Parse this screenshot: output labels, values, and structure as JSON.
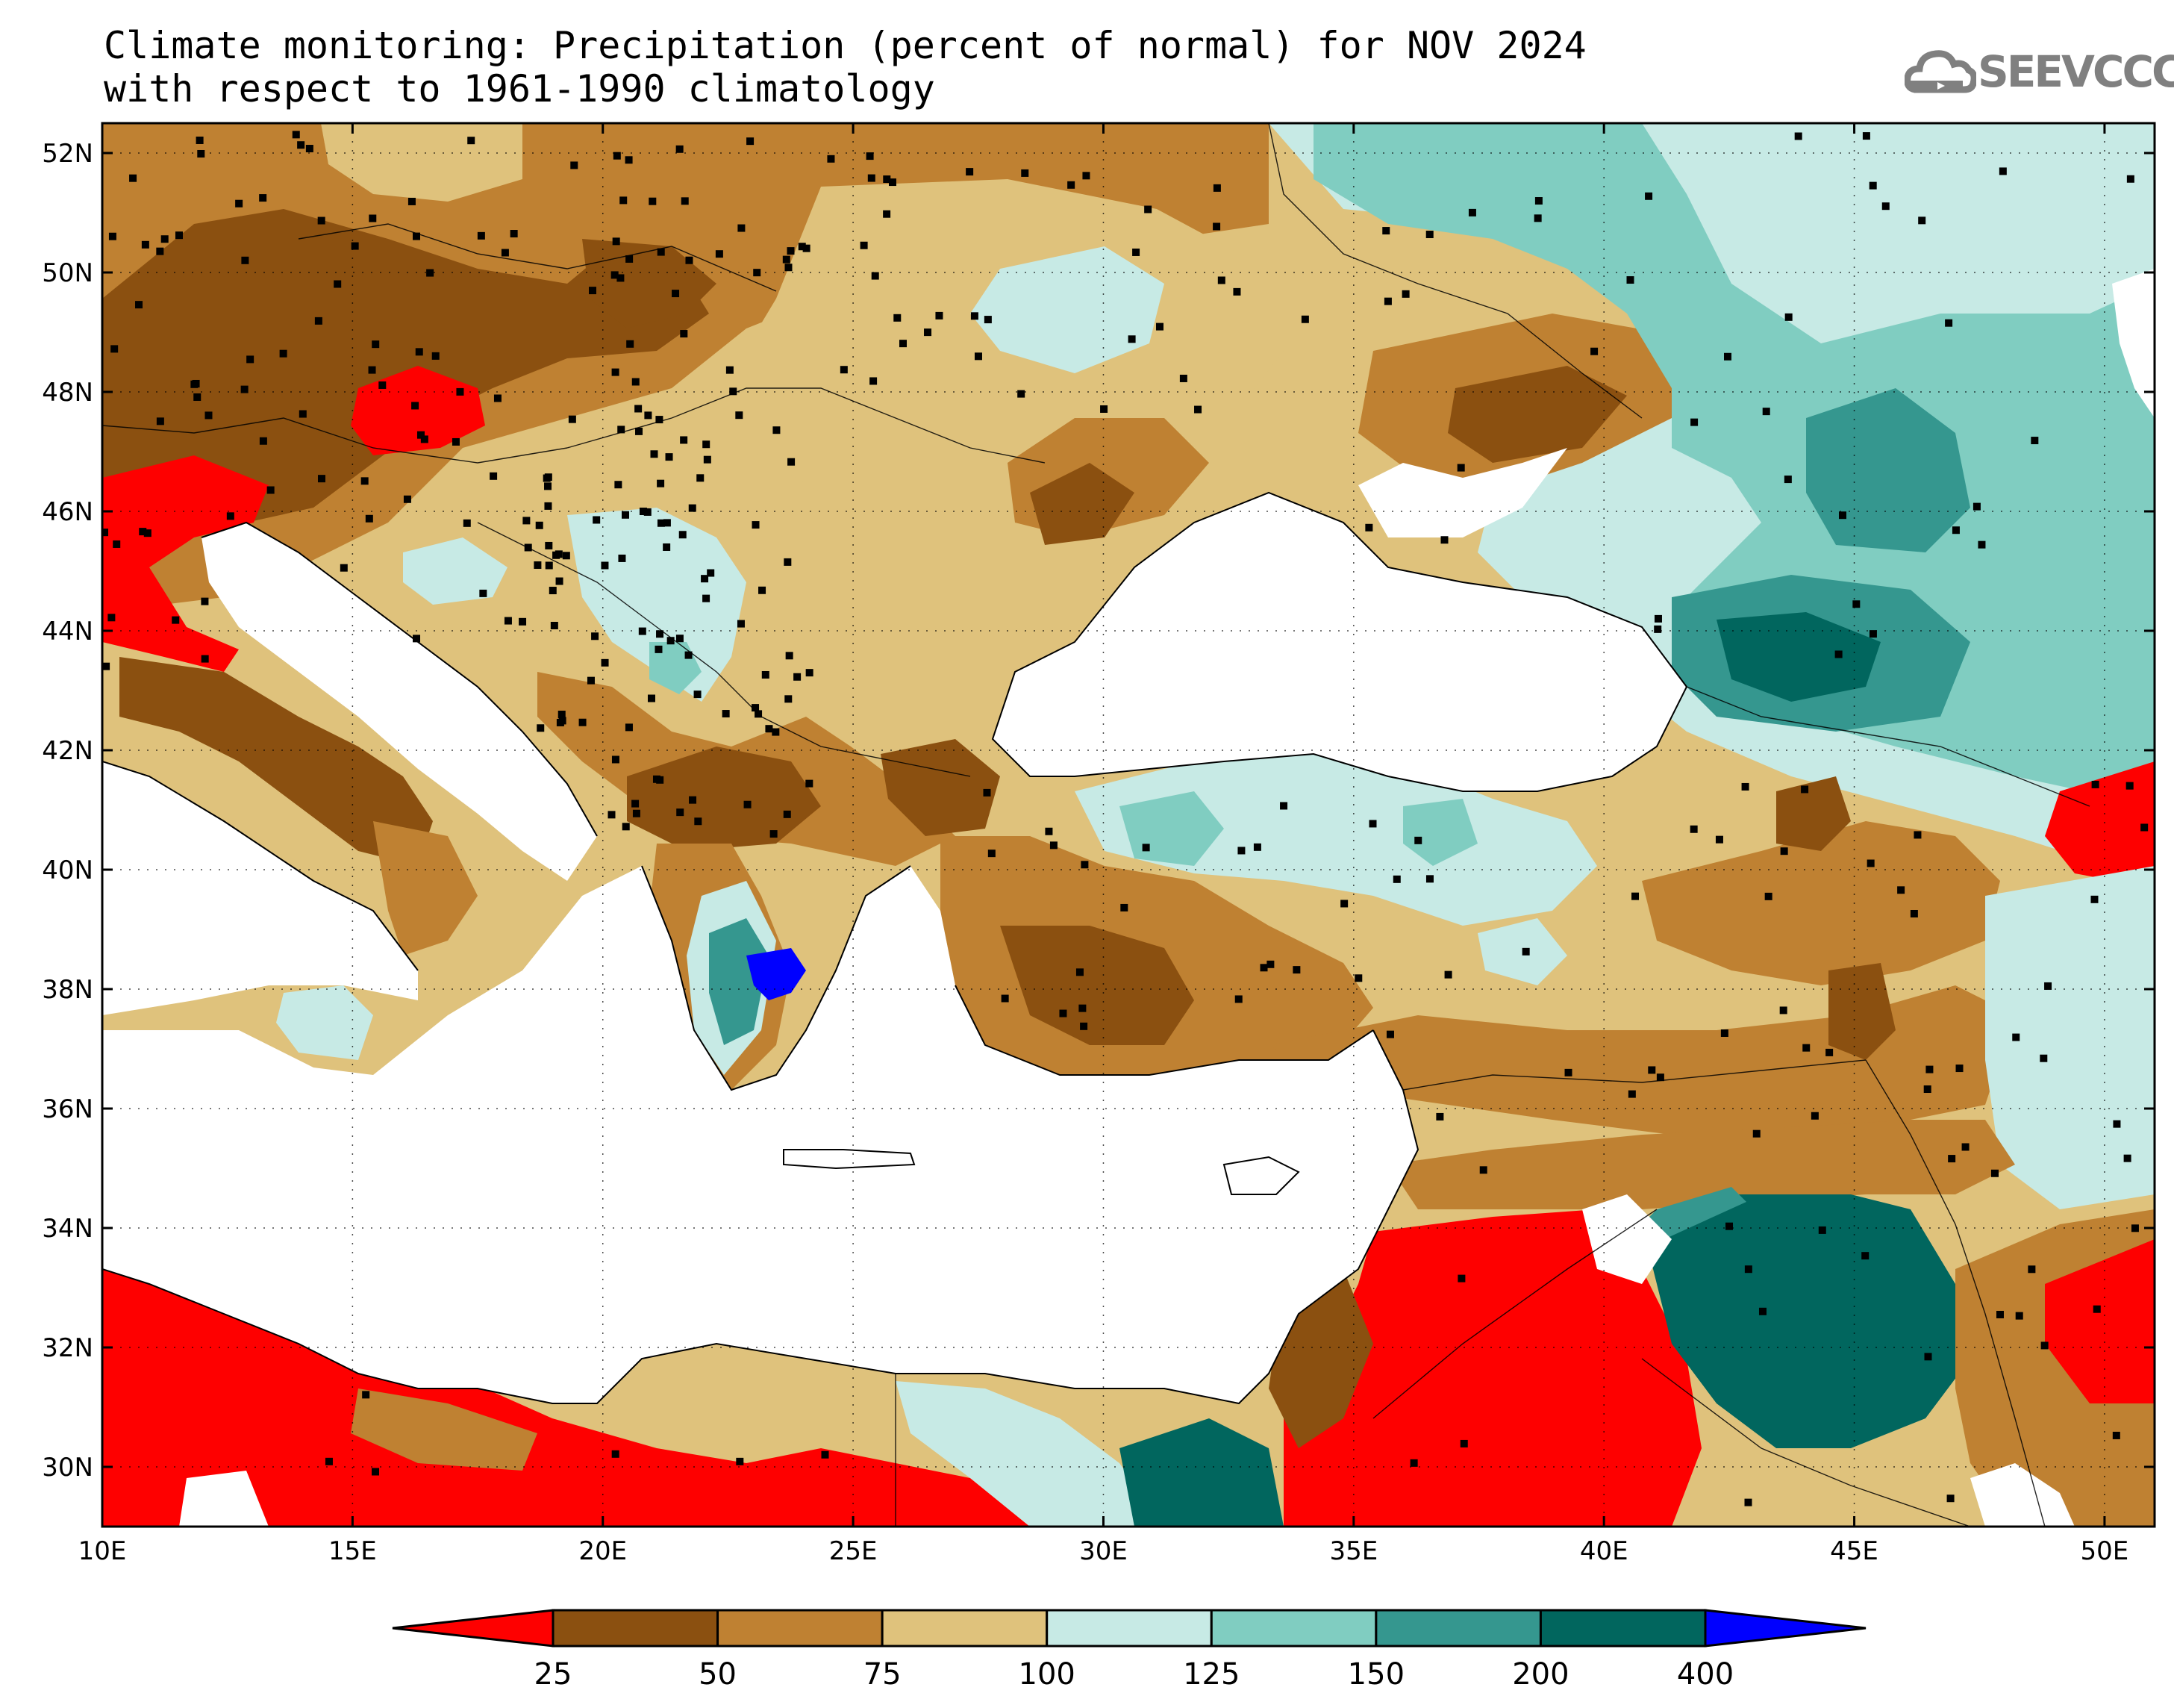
{
  "title": {
    "line1": "Climate monitoring: Precipitation (percent of normal) for NOV 2024",
    "line2": "with respect to 1961-1990 climatology"
  },
  "logo": {
    "text": "SEEVCCC",
    "icon": "cloud-icon"
  },
  "map": {
    "lon_range": [
      10,
      51
    ],
    "lat_range": [
      29,
      52.5
    ],
    "lat_ticks": [
      {
        "value": 52,
        "label": "52N"
      },
      {
        "value": 50,
        "label": "50N"
      },
      {
        "value": 48,
        "label": "48N"
      },
      {
        "value": 46,
        "label": "46N"
      },
      {
        "value": 44,
        "label": "44N"
      },
      {
        "value": 42,
        "label": "42N"
      },
      {
        "value": 40,
        "label": "40N"
      },
      {
        "value": 38,
        "label": "38N"
      },
      {
        "value": 36,
        "label": "36N"
      },
      {
        "value": 34,
        "label": "34N"
      },
      {
        "value": 32,
        "label": "32N"
      },
      {
        "value": 30,
        "label": "30N"
      }
    ],
    "lon_ticks": [
      {
        "value": 10,
        "label": "10E"
      },
      {
        "value": 15,
        "label": "15E"
      },
      {
        "value": 20,
        "label": "20E"
      },
      {
        "value": 25,
        "label": "25E"
      },
      {
        "value": 30,
        "label": "30E"
      },
      {
        "value": 35,
        "label": "35E"
      },
      {
        "value": 40,
        "label": "40E"
      },
      {
        "value": 45,
        "label": "45E"
      },
      {
        "value": 50,
        "label": "50E"
      }
    ],
    "grid": "dotted"
  },
  "legend": {
    "breaks": [
      "25",
      "50",
      "75",
      "100",
      "125",
      "150",
      "200",
      "400"
    ],
    "colors": [
      "#fe0000",
      "#8b5010",
      "#bf8132",
      "#dfc27c",
      "#c7eae5",
      "#80cdc1",
      "#35978f",
      "#01665e",
      "#0000ff"
    ]
  }
}
